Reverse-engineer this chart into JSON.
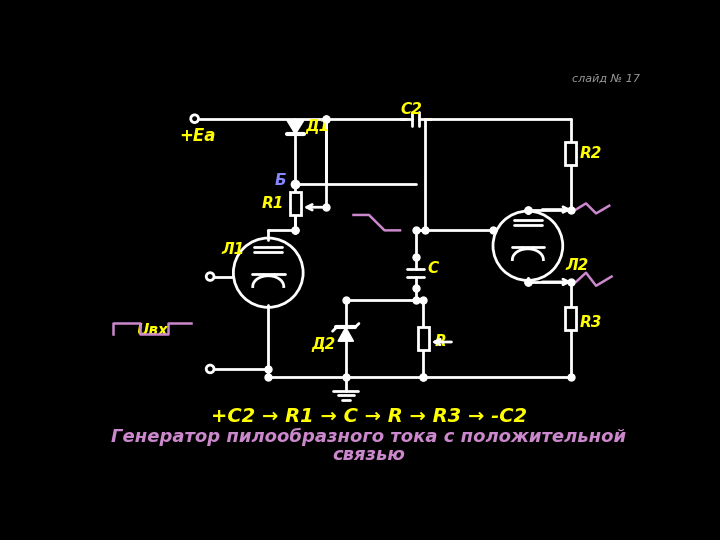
{
  "bg_color": "#000000",
  "white_color": "#ffffff",
  "yellow_color": "#ffff00",
  "pink_color": "#cc88cc",
  "gray_color": "#999999",
  "slide_text": "слайд № 17",
  "label_Ea": "+Ea",
  "label_D1": "Д1",
  "label_C2": "C2",
  "label_R2": "R2",
  "label_B": "Б",
  "label_R1": "R1",
  "label_L1": "Л1",
  "label_C": "C",
  "label_L2": "Л2",
  "label_D2": "Д2",
  "label_R": "R",
  "label_R3": "R3",
  "label_Uvx": "Uвх",
  "formula_text": "+C2 → R1 → C → R → R3 → -C2",
  "desc_text": "Генератор пилообразного тока с положительной",
  "desc_text2": "связью"
}
